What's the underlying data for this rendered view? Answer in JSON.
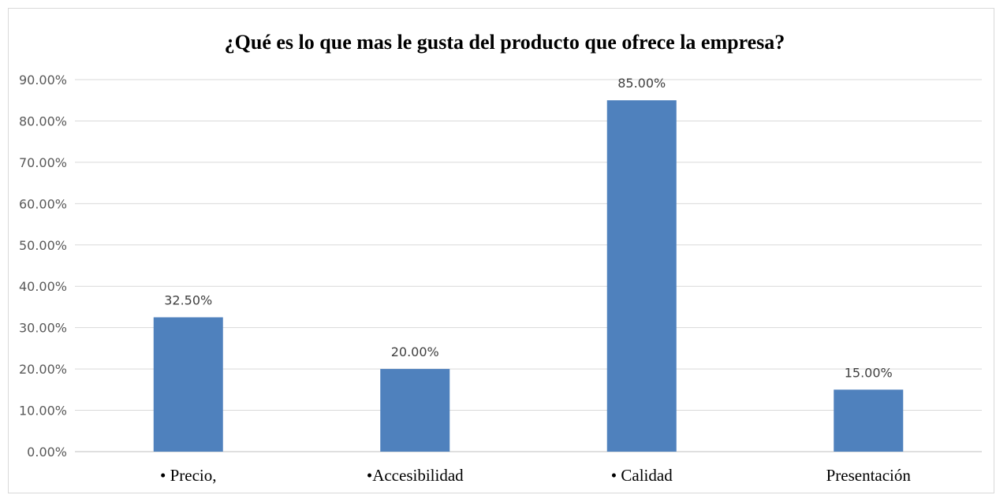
{
  "chart_data": {
    "type": "bar",
    "title": "¿Qué es lo que mas le gusta del producto que ofrece la empresa?",
    "xlabel": "",
    "ylabel": "",
    "categories": [
      "• Precio,",
      "•Accesibilidad",
      "• Calidad",
      "Presentación"
    ],
    "values": [
      32.5,
      20.0,
      85.0,
      15.0
    ],
    "data_labels": [
      "32.50%",
      "20.00%",
      "85.00%",
      "15.00%"
    ],
    "ylim": [
      0,
      90
    ],
    "yticks": [
      0,
      10,
      20,
      30,
      40,
      50,
      60,
      70,
      80,
      90
    ],
    "ytick_labels": [
      "0.00%",
      "10.00%",
      "20.00%",
      "30.00%",
      "40.00%",
      "50.00%",
      "60.00%",
      "70.00%",
      "80.00%",
      "90.00%"
    ],
    "grid": true,
    "legend": "none",
    "colors": {
      "bar": "#4f81bd",
      "grid": "#d9d9d9"
    }
  }
}
